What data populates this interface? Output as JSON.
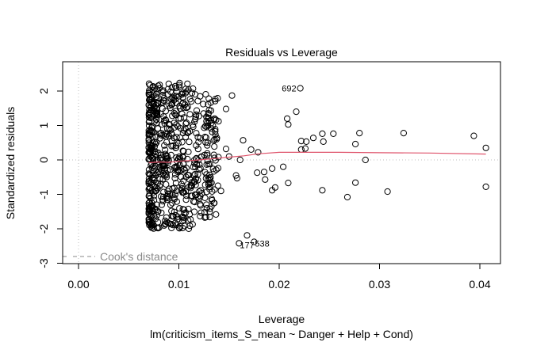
{
  "chart_data": {
    "type": "scatter",
    "title": "Residuals vs Leverage",
    "xlabel": "Leverage",
    "subtitle": "lm(criticism_items_S_mean ~ Danger + Help + Cond)",
    "ylabel": "Standardized residuals",
    "xlim": [
      -0.0016,
      0.0413
    ],
    "ylim": [
      -3.0,
      2.85
    ],
    "x_ticks": [
      0.0,
      0.01,
      0.02,
      0.03,
      0.04
    ],
    "x_tick_labels": [
      "0.00",
      "0.01",
      "0.02",
      "0.03",
      "0.04"
    ],
    "y_ticks": [
      -3,
      -2,
      -1,
      0,
      1,
      2
    ],
    "y_tick_labels": [
      "-3",
      "-2",
      "-1",
      "0",
      "1",
      "2"
    ],
    "legend": {
      "entries": [
        "Cook's distance"
      ],
      "position": "bottom-left"
    },
    "reference_lines": {
      "h": 0,
      "v": 0,
      "style": "dotted",
      "color": "#bfbfbf"
    },
    "colors": {
      "points": "#000000",
      "smooth": "#DF536B",
      "cooks": "#8a8a8a",
      "reference": "#bfbfbf"
    },
    "point_labels": [
      {
        "text": "692",
        "x": 0.0221,
        "y": 2.08
      },
      {
        "text": "177",
        "x": 0.016,
        "y": -2.42
      },
      {
        "text": "538",
        "x": 0.0175,
        "y": -2.38
      }
    ],
    "smooth_line": {
      "x": [
        0.007,
        0.008,
        0.009,
        0.01,
        0.011,
        0.012,
        0.0135,
        0.015,
        0.0165,
        0.018,
        0.02,
        0.023,
        0.026,
        0.03,
        0.035,
        0.0406
      ],
      "y": [
        -0.08,
        -0.06,
        -0.07,
        -0.04,
        -0.02,
        0.0,
        0.04,
        0.08,
        0.12,
        0.18,
        0.22,
        0.22,
        0.22,
        0.21,
        0.2,
        0.17
      ]
    },
    "sparse_points": {
      "x": [
        0.0221,
        0.016,
        0.0175,
        0.0168,
        0.0153,
        0.0147,
        0.0164,
        0.0172,
        0.0179,
        0.0185,
        0.0196,
        0.0193,
        0.0186,
        0.0178,
        0.0158,
        0.0139,
        0.0142,
        0.0161,
        0.015,
        0.0147,
        0.0157,
        0.0208,
        0.0209,
        0.0217,
        0.0222,
        0.0226,
        0.0234,
        0.0243,
        0.0244,
        0.0254,
        0.0227,
        0.0222,
        0.0286,
        0.028,
        0.0276,
        0.0324,
        0.0394,
        0.0406,
        0.0406,
        0.0209,
        0.0243,
        0.0268,
        0.0308,
        0.0276,
        0.0204,
        0.0193
      ],
      "y": [
        2.08,
        -2.42,
        -2.38,
        -2.19,
        1.87,
        1.48,
        0.57,
        0.3,
        0.22,
        -0.35,
        -0.8,
        -0.88,
        -0.57,
        -0.37,
        -0.53,
        -0.75,
        -0.9,
        0.0,
        0.1,
        0.32,
        -0.45,
        1.2,
        1.03,
        1.4,
        0.55,
        0.33,
        0.64,
        0.76,
        0.53,
        0.76,
        0.53,
        0.3,
        0.0,
        0.78,
        0.46,
        0.78,
        0.7,
        0.35,
        -0.78,
        -0.67,
        -0.88,
        -1.08,
        -0.92,
        -0.66,
        -0.2,
        -0.25
      ]
    },
    "dense_cluster": {
      "description": "approx. 650 observations with leverage between 0.0070 and 0.0140 and standardized residuals between -2.0 and 2.25",
      "x_range": [
        0.007,
        0.014
      ],
      "y_range": [
        -2.0,
        2.25
      ],
      "n_approx": 650
    }
  }
}
